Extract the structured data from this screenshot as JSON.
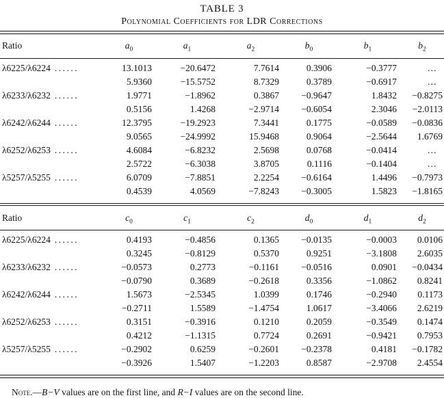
{
  "title": "TABLE 3",
  "subtitle": "Polynomial Coefficients for LDR Corrections",
  "leader_dots": "......",
  "sections": [
    {
      "headers": [
        "Ratio",
        "a_0",
        "a_1",
        "a_2",
        "b_0",
        "b_1",
        "b_2"
      ],
      "rows": [
        [
          "λ6225/λ6224",
          "13.1013",
          "−20.6472",
          "7.7614",
          "0.3906",
          "−0.3777",
          "…"
        ],
        [
          "",
          "5.9360",
          "−15.5752",
          "8.7329",
          "0.3789",
          "−0.6917",
          "…"
        ],
        [
          "λ6233/λ6232",
          "1.9771",
          "−1.8962",
          "0.3867",
          "−0.9647",
          "1.8432",
          "−0.8275"
        ],
        [
          "",
          "0.5156",
          "1.4268",
          "−2.9714",
          "−0.6054",
          "2.3046",
          "−2.0113"
        ],
        [
          "λ6242/λ6244",
          "12.3795",
          "−19.2923",
          "7.3441",
          "0.1775",
          "−0.0589",
          "−0.0836"
        ],
        [
          "",
          "9.0565",
          "−24.9992",
          "15.9468",
          "0.9064",
          "−2.5644",
          "1.6769"
        ],
        [
          "λ6252/λ6253",
          "4.6084",
          "−6.8232",
          "2.5698",
          "0.0768",
          "−0.0414",
          "…"
        ],
        [
          "",
          "2.5722",
          "−6.3038",
          "3.8705",
          "0.1116",
          "−0.1404",
          "…"
        ],
        [
          "λ5257/λ5255",
          "6.0709",
          "−7.8851",
          "2.2254",
          "−0.6164",
          "1.4496",
          "−0.7973"
        ],
        [
          "",
          "0.4539",
          "4.0569",
          "−7.8243",
          "−0.3005",
          "1.5823",
          "−1.8165"
        ]
      ]
    },
    {
      "headers": [
        "Ratio",
        "c_0",
        "c_1",
        "c_2",
        "d_0",
        "d_1",
        "d_2"
      ],
      "rows": [
        [
          "λ6225/λ6224",
          "0.4193",
          "−0.4856",
          "0.1365",
          "−0.0135",
          "−0.0003",
          "0.0106"
        ],
        [
          "",
          "0.3245",
          "−0.8129",
          "0.5370",
          "0.9251",
          "−3.1808",
          "2.6035"
        ],
        [
          "λ6233/λ6232",
          "−0.0573",
          "0.2773",
          "−0.1161",
          "−0.0516",
          "0.0901",
          "−0.0434"
        ],
        [
          "",
          "−0.0790",
          "0.3689",
          "−0.2618",
          "0.3356",
          "−1.0862",
          "0.8241"
        ],
        [
          "λ6242/λ6244",
          "1.5673",
          "−2.5345",
          "1.0399",
          "0.1746",
          "−0.2940",
          "0.1173"
        ],
        [
          "",
          "−0.2711",
          "1.5589",
          "−1.4754",
          "1.0617",
          "−3.4066",
          "2.6219"
        ],
        [
          "λ6252/λ6253",
          "0.3151",
          "−0.3916",
          "0.1210",
          "0.2059",
          "−0.3549",
          "0.1474"
        ],
        [
          "",
          "0.4212",
          "−1.1315",
          "0.7724",
          "0.2691",
          "−0.9421",
          "0.7953"
        ],
        [
          "λ5257/λ5255",
          "−0.2902",
          "0.6259",
          "−0.2601",
          "−0.2378",
          "0.4181",
          "−0.1782"
        ],
        [
          "",
          "−0.3926",
          "1.5407",
          "−1.2203",
          "0.8587",
          "−2.9708",
          "2.4554"
        ]
      ]
    }
  ],
  "note": {
    "segments": [
      {
        "text": "Note.—",
        "style": "smallcaps"
      },
      {
        "text": "B−V",
        "style": "italic"
      },
      {
        "text": " values are on the first line, and ",
        "style": "normal"
      },
      {
        "text": "R−I",
        "style": "italic"
      },
      {
        "text": " values are on the second line.",
        "style": "normal"
      }
    ]
  }
}
